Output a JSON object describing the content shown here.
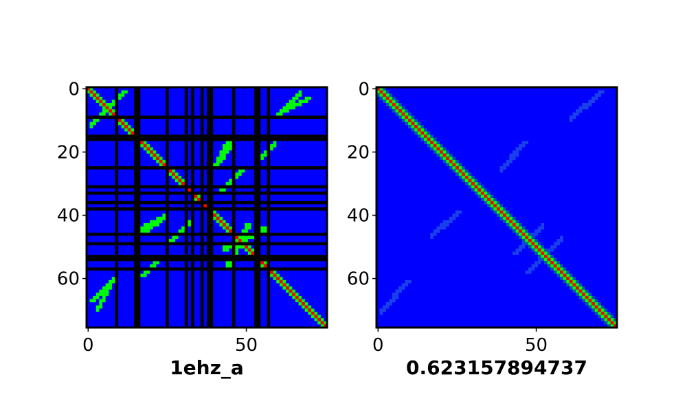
{
  "colors": {
    "background": "#0000ff",
    "weak": "#00ff00",
    "strong": "#ff0000",
    "masked": "#000000",
    "frame": "#000000"
  },
  "chart_data": [
    {
      "type": "heatmap",
      "xlabel": "1ehz_a",
      "matrix_size": 76,
      "xlim": [
        0,
        76
      ],
      "ylim": [
        0,
        76
      ],
      "x_ticks": [
        0,
        50
      ],
      "y_ticks": [
        0,
        20,
        40,
        60
      ],
      "masked_columns": [
        9,
        15,
        16,
        25,
        31,
        33,
        36,
        38,
        39,
        46,
        53,
        54,
        57
      ],
      "masked_rows": [
        9,
        15,
        16,
        25,
        31,
        33,
        36,
        38,
        46,
        49,
        53,
        54,
        57
      ],
      "diagonal": {
        "strong": 0,
        "weak": 1
      },
      "contact_stems": [
        {
          "i": [
            3,
            8
          ],
          "j": [
            60,
            69
          ],
          "value": "weak"
        },
        {
          "i": [
            1,
            8
          ],
          "j": [
            4,
            11
          ],
          "value": "weak"
        },
        {
          "i": [
            17,
            24
          ],
          "j": [
            40,
            44
          ],
          "value": "weak"
        },
        {
          "i": [
            26,
            32
          ],
          "j": [
            42,
            48
          ],
          "value": "weak"
        },
        {
          "i": [
            40,
            45
          ],
          "j": [
            18,
            24
          ],
          "value": "weak"
        },
        {
          "i": [
            43,
            56
          ],
          "j": [
            44,
            50
          ],
          "value": "weak"
        },
        {
          "i": [
            60,
            67
          ],
          "j": [
            1,
            8
          ],
          "value": "weak"
        },
        {
          "i": [
            55,
            59
          ],
          "j": [
            17,
            21
          ],
          "value": "weak"
        },
        {
          "i": [
            33,
            35
          ],
          "j": [
            33,
            35
          ],
          "value": "strong"
        },
        {
          "i": [
            46,
            47
          ],
          "j": [
            46,
            47
          ],
          "value": "strong"
        },
        {
          "i": [
            55,
            56
          ],
          "j": [
            55,
            56
          ],
          "value": "strong"
        }
      ]
    },
    {
      "type": "heatmap",
      "xlabel": "0.623157894737",
      "matrix_size": 76,
      "xlim": [
        0,
        76
      ],
      "ylim": [
        0,
        76
      ],
      "x_ticks": [
        0,
        50
      ],
      "y_ticks": [
        0,
        20,
        40,
        60
      ],
      "diagonal": {
        "strong": 0,
        "weak": 1
      },
      "faint_stems": [
        {
          "i": [
            1,
            8
          ],
          "j": [
            62,
            70
          ]
        },
        {
          "i": [
            17,
            25
          ],
          "j": [
            39,
            46
          ]
        },
        {
          "i": [
            39,
            45
          ],
          "j": [
            18,
            25
          ]
        },
        {
          "i": [
            45,
            52
          ],
          "j": [
            43,
            50
          ]
        },
        {
          "i": [
            61,
            70
          ],
          "j": [
            1,
            9
          ]
        },
        {
          "i": [
            53,
            58
          ],
          "j": [
            47,
            52
          ]
        }
      ]
    }
  ]
}
